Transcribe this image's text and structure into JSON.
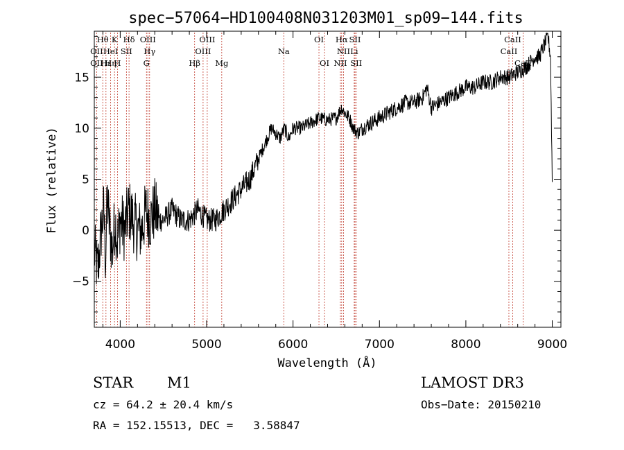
{
  "chart_data": {
    "type": "line",
    "title": "spec−57064−HD100408N031203M01_sp09−144.fits",
    "xlabel": "Wavelength (Å)",
    "ylabel": "Flux (relative)",
    "xlim": [
      3700,
      9100
    ],
    "ylim": [
      -9.5,
      19.5
    ],
    "x_ticks": [
      4000,
      5000,
      6000,
      7000,
      8000,
      9000
    ],
    "x_tick_labels": [
      "4000",
      "5000",
      "6000",
      "7000",
      "8000",
      "9000"
    ],
    "y_ticks": [
      -5,
      0,
      5,
      10,
      15
    ],
    "y_tick_labels": [
      "−5",
      "0",
      "5",
      "10",
      "15"
    ],
    "series": [
      {
        "name": "flux",
        "x": [
          3700,
          3740,
          3780,
          3810,
          3830,
          3850,
          3880,
          3910,
          3940,
          3970,
          4000,
          4050,
          4100,
          4150,
          4200,
          4250,
          4300,
          4350,
          4400,
          4450,
          4500,
          4600,
          4700,
          4800,
          4900,
          5000,
          5100,
          5200,
          5300,
          5400,
          5500,
          5600,
          5650,
          5700,
          5750,
          5800,
          5850,
          5900,
          5950,
          6000,
          6100,
          6200,
          6300,
          6400,
          6500,
          6560,
          6600,
          6650,
          6700,
          6750,
          6800,
          6900,
          7000,
          7100,
          7200,
          7300,
          7400,
          7500,
          7550,
          7600,
          7700,
          7800,
          7900,
          8000,
          8100,
          8200,
          8300,
          8400,
          8500,
          8600,
          8700,
          8800,
          8850,
          8900,
          8950,
          8980,
          9000
        ],
        "y": [
          -2,
          -4,
          0,
          2,
          -3,
          3,
          0,
          -2,
          1,
          -1,
          1,
          0,
          2,
          1,
          0,
          0,
          2,
          1,
          2,
          1,
          1,
          2,
          1,
          1,
          2,
          1,
          1,
          2,
          3,
          4,
          5,
          7,
          8,
          9,
          10,
          9.5,
          9,
          10,
          9,
          10,
          10,
          10.5,
          11,
          10.8,
          11,
          12,
          11.5,
          11,
          10,
          9.5,
          10,
          10.5,
          11,
          11.5,
          12,
          12.5,
          12.5,
          13,
          14,
          12,
          12.5,
          13,
          13.5,
          14,
          14,
          14.5,
          14.5,
          15,
          15,
          15.5,
          16,
          17,
          17,
          18,
          19,
          17,
          5
        ]
      }
    ],
    "spectral_lines": [
      {
        "label": "Hθ",
        "x": 3798,
        "row": 0
      },
      {
        "label": "K",
        "x": 3934,
        "row": 0
      },
      {
        "label": "Hδ",
        "x": 4102,
        "row": 0
      },
      {
        "label": "OIII",
        "x": 4320,
        "row": 0
      },
      {
        "label": "OIII",
        "x": 5007,
        "row": 0
      },
      {
        "label": "OI",
        "x": 6300,
        "row": 0
      },
      {
        "label": "Hα",
        "x": 6563,
        "row": 0
      },
      {
        "label": "SII",
        "x": 6717,
        "row": 0
      },
      {
        "label": "CaII",
        "x": 8542,
        "row": 0
      },
      {
        "label": "OII",
        "x": 3727,
        "row": 1
      },
      {
        "label": "HeI",
        "x": 3889,
        "row": 1
      },
      {
        "label": "SII",
        "x": 4072,
        "row": 1
      },
      {
        "label": "Hγ",
        "x": 4340,
        "row": 1
      },
      {
        "label": "OIII",
        "x": 4959,
        "row": 1
      },
      {
        "label": "Na",
        "x": 5893,
        "row": 1
      },
      {
        "label": "NII",
        "x": 6584,
        "row": 1
      },
      {
        "label": "Li",
        "x": 6708,
        "row": 1
      },
      {
        "label": "CaII",
        "x": 8498,
        "row": 1
      },
      {
        "label": "OII",
        "x": 3727,
        "row": 2
      },
      {
        "label": "Hε",
        "x": 3835,
        "row": 2
      },
      {
        "label": "Hη",
        "x": 3889,
        "row": 2
      },
      {
        "label": "H",
        "x": 3968,
        "row": 2
      },
      {
        "label": "G",
        "x": 4304,
        "row": 2
      },
      {
        "label": "Hβ",
        "x": 4861,
        "row": 2
      },
      {
        "label": "Mg",
        "x": 5175,
        "row": 2
      },
      {
        "label": "OI",
        "x": 6364,
        "row": 2
      },
      {
        "label": "NII",
        "x": 6548,
        "row": 2
      },
      {
        "label": "SII",
        "x": 6731,
        "row": 2
      },
      {
        "label": "CaII",
        "x": 8662,
        "row": 2
      }
    ]
  },
  "info": {
    "object_class": "STAR",
    "subclass": "M1",
    "survey": "LAMOST DR3",
    "cz": "cz = 64.2 ± 20.4 km/s",
    "obs_date": "Obs−Date: 20150210",
    "coords": "RA = 152.15513, DEC =   3.58847"
  }
}
